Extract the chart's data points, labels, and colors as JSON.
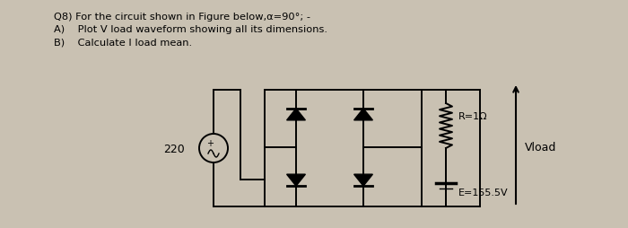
{
  "bg_color": "#c9c1b2",
  "title_line1": "Q8) For the circuit shown in Figure below,α=90°; -",
  "title_line2": "A)    Plot V load waveform showing all its dimensions.",
  "title_line3": "B)    Calculate I load mean.",
  "label_220": "220",
  "label_R": "R=1Ω",
  "label_E": "E=155.5V",
  "label_Vload": "Vload",
  "fig_width": 7.0,
  "fig_height": 2.54,
  "dpi": 100
}
